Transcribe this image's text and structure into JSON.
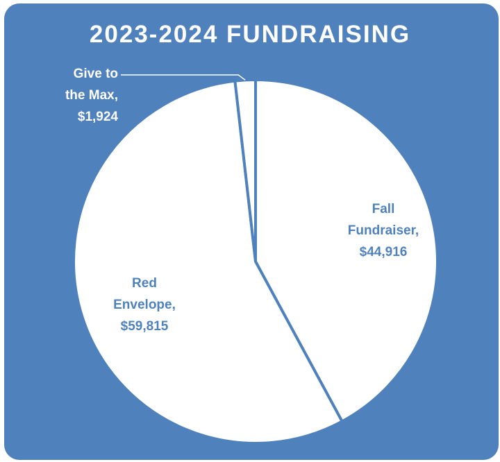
{
  "colors": {
    "background": "#4f81bd",
    "slice_fill": "#ffffff",
    "slice_border": "#4f81bd",
    "label_on_slice": "#4f81bd",
    "label_on_background": "#ffffff"
  },
  "chart_data": {
    "type": "pie",
    "title": "2023-2024 FUNDRAISING",
    "slices": [
      {
        "name": "Fall Fundraiser",
        "value": 44916,
        "value_label": "$44,916",
        "label_lines": [
          "Fall",
          "Fundraiser,",
          "$44,916"
        ]
      },
      {
        "name": "Red Envelope",
        "value": 59815,
        "value_label": "$59,815",
        "label_lines": [
          "Red",
          "Envelope,",
          "$59,815"
        ]
      },
      {
        "name": "Give to the Max",
        "value": 1924,
        "value_label": "$1,924",
        "label_lines": [
          "Give to",
          "the Max,",
          "$1,924"
        ]
      }
    ],
    "start": "12 o'clock",
    "direction": "clockwise",
    "legend": "none",
    "labels": "category name and value"
  }
}
